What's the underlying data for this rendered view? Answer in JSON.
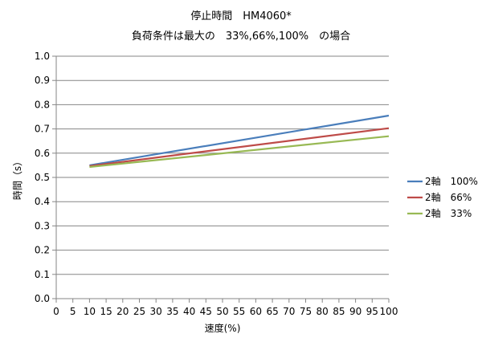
{
  "chart_data": {
    "type": "line",
    "title": "停止時間　HM4060*",
    "subtitle": "負荷条件は最大の　33%,66%,100%　の場合",
    "xlabel": "速度(%)",
    "ylabel": "時間（s）",
    "xlim": [
      0,
      100
    ],
    "ylim": [
      0.0,
      1.0
    ],
    "x_ticks": [
      "0",
      "5",
      "10",
      "15",
      "20",
      "25",
      "30",
      "35",
      "40",
      "45",
      "50",
      "55",
      "60",
      "65",
      "70",
      "75",
      "80",
      "85",
      "90",
      "95",
      "100"
    ],
    "y_ticks": [
      "0.0",
      "0.1",
      "0.2",
      "0.3",
      "0.4",
      "0.5",
      "0.6",
      "0.7",
      "0.8",
      "0.9",
      "1.0"
    ],
    "grid": true,
    "legend_position": "right",
    "x": [
      10,
      100
    ],
    "series": [
      {
        "name": "2軸　100%",
        "color": "#4a7ebb",
        "x": [
          10,
          100
        ],
        "values": [
          0.55,
          0.755
        ]
      },
      {
        "name": "2軸　66%",
        "color": "#be4b48",
        "x": [
          10,
          100
        ],
        "values": [
          0.547,
          0.703
        ]
      },
      {
        "name": "2軸　33%",
        "color": "#98b954",
        "x": [
          10,
          100
        ],
        "values": [
          0.543,
          0.67
        ]
      }
    ]
  }
}
